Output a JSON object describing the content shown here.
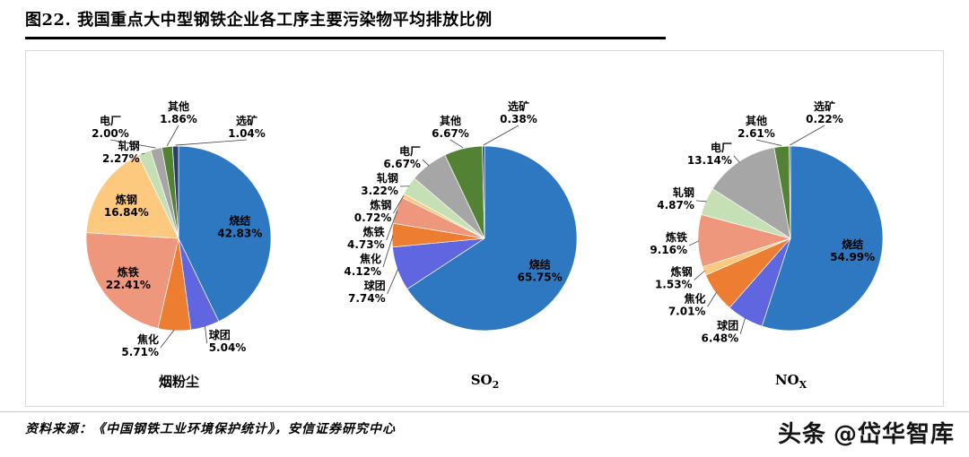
{
  "page": {
    "title": "图22. 我国重点大中型钢铁企业各工序主要污染物平均排放比例",
    "source": "资料来源：《中国钢铁工业环境保护统计》，安信证券研究中心",
    "watermark_logo": "头条",
    "watermark_handle": "@岱华智库"
  },
  "palette": {
    "烧结": "#2e78c2",
    "球团": "#6065e0",
    "焦化": "#ed7d31",
    "炼铁": "#ef977d",
    "炼钢": "#fcc97e",
    "轧钢": "#c5e0b4",
    "电厂": "#a6a6a6",
    "其他": "#548235",
    "选矿": "#24406e"
  },
  "chart_data": [
    {
      "type": "pie",
      "title": {
        "text": "烟粉尘",
        "sub": ""
      },
      "unit": "%",
      "slices": [
        {
          "label": "烧结",
          "value": 42.83
        },
        {
          "label": "球团",
          "value": 5.04
        },
        {
          "label": "焦化",
          "value": 5.71
        },
        {
          "label": "炼铁",
          "value": 22.41
        },
        {
          "label": "炼钢",
          "value": 16.84
        },
        {
          "label": "轧钢",
          "value": 2.27
        },
        {
          "label": "电厂",
          "value": 2.0
        },
        {
          "label": "其他",
          "value": 1.86
        },
        {
          "label": "选矿",
          "value": 1.04
        }
      ]
    },
    {
      "type": "pie",
      "title": {
        "text": "SO",
        "sub": "2"
      },
      "unit": "%",
      "slices": [
        {
          "label": "烧结",
          "value": 65.75
        },
        {
          "label": "球团",
          "value": 7.74
        },
        {
          "label": "焦化",
          "value": 4.12
        },
        {
          "label": "炼铁",
          "value": 4.73
        },
        {
          "label": "炼钢",
          "value": 0.72
        },
        {
          "label": "轧钢",
          "value": 3.22
        },
        {
          "label": "电厂",
          "value": 6.67
        },
        {
          "label": "其他",
          "value": 6.67
        },
        {
          "label": "选矿",
          "value": 0.38
        }
      ]
    },
    {
      "type": "pie",
      "title": {
        "text": "NO",
        "sub": "X"
      },
      "unit": "%",
      "slices": [
        {
          "label": "烧结",
          "value": 54.99
        },
        {
          "label": "球团",
          "value": 6.48
        },
        {
          "label": "焦化",
          "value": 7.01
        },
        {
          "label": "炼钢",
          "value": 1.53
        },
        {
          "label": "炼铁",
          "value": 9.16
        },
        {
          "label": "轧钢",
          "value": 4.87
        },
        {
          "label": "电厂",
          "value": 13.14
        },
        {
          "label": "其他",
          "value": 2.61
        },
        {
          "label": "选矿",
          "value": 0.22
        }
      ]
    }
  ]
}
